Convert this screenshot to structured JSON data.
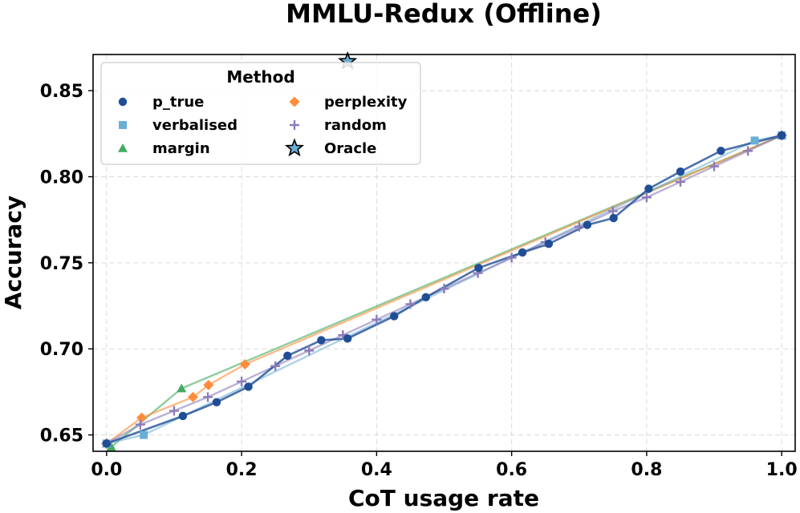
{
  "chart_data": {
    "type": "line",
    "title": "MMLU-Redux (Offline)",
    "xlabel": "CoT usage rate",
    "ylabel": "Accuracy",
    "xlim": [
      -0.02,
      1.02
    ],
    "ylim": [
      0.6405,
      0.871
    ],
    "xticks": [
      0.0,
      0.2,
      0.4,
      0.6,
      0.8,
      1.0
    ],
    "xtick_labels": [
      "0.0",
      "0.2",
      "0.4",
      "0.6",
      "0.8",
      "1.0"
    ],
    "yticks": [
      0.65,
      0.7,
      0.75,
      0.8,
      0.85
    ],
    "ytick_labels": [
      "0.65",
      "0.70",
      "0.75",
      "0.80",
      "0.85"
    ],
    "grid": true,
    "legend": {
      "title": "Method",
      "placement": "top-left"
    },
    "series": [
      {
        "name": "p_true",
        "color": "#1f4e96",
        "marker": "circle",
        "x": [
          0.0,
          0.113,
          0.163,
          0.21,
          0.268,
          0.318,
          0.357,
          0.426,
          0.473,
          0.551,
          0.616,
          0.655,
          0.712,
          0.751,
          0.803,
          0.85,
          0.91,
          1.0
        ],
        "y": [
          0.645,
          0.661,
          0.669,
          0.678,
          0.696,
          0.705,
          0.706,
          0.719,
          0.73,
          0.747,
          0.756,
          0.761,
          0.772,
          0.776,
          0.793,
          0.803,
          0.815,
          0.824
        ]
      },
      {
        "name": "verbalised",
        "color": "#6baed6",
        "marker": "square",
        "x": [
          0.0,
          0.055,
          0.96,
          1.0
        ],
        "y": [
          0.645,
          0.65,
          0.821,
          0.824
        ]
      },
      {
        "name": "margin",
        "color": "#41ab5d",
        "marker": "triangle",
        "x": [
          0.0,
          0.007,
          0.111,
          1.0
        ],
        "y": [
          0.645,
          0.643,
          0.677,
          0.824
        ]
      },
      {
        "name": "perplexity",
        "color": "#fd8d3c",
        "marker": "diamond",
        "x": [
          0.0,
          0.052,
          0.128,
          0.151,
          0.205,
          1.0
        ],
        "y": [
          0.645,
          0.66,
          0.672,
          0.679,
          0.691,
          0.824
        ]
      },
      {
        "name": "random",
        "color": "#8c7dba",
        "marker": "plus",
        "x": [
          0.0,
          0.05,
          0.1,
          0.15,
          0.2,
          0.25,
          0.3,
          0.35,
          0.4,
          0.45,
          0.5,
          0.55,
          0.6,
          0.65,
          0.7,
          0.75,
          0.8,
          0.85,
          0.9,
          0.95,
          1.0
        ],
        "y": [
          0.645,
          0.656,
          0.664,
          0.672,
          0.681,
          0.69,
          0.699,
          0.708,
          0.717,
          0.726,
          0.735,
          0.744,
          0.753,
          0.762,
          0.771,
          0.78,
          0.788,
          0.797,
          0.806,
          0.815,
          0.824
        ]
      }
    ],
    "oracle": {
      "name": "Oracle",
      "color": "#6baed6",
      "marker": "star",
      "x": 0.357,
      "y": 0.867
    }
  }
}
